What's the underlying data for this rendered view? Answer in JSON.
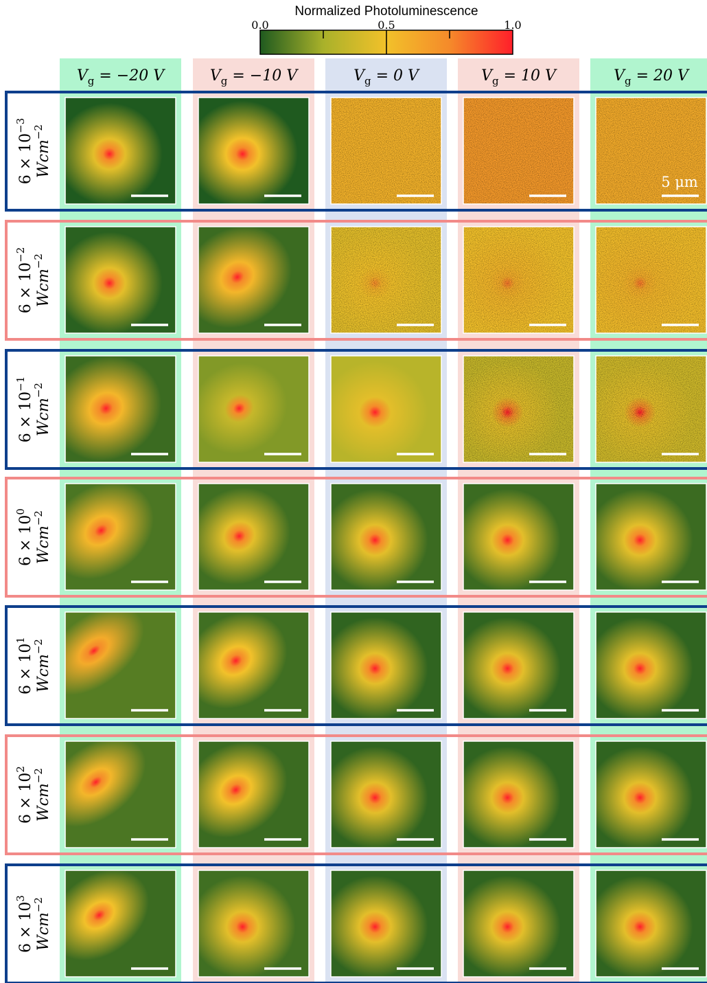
{
  "colorbar": {
    "title": "Normalized Photoluminescence",
    "ticks": [
      "0.0",
      "0.5",
      "1.0"
    ],
    "range": [
      0.0,
      1.0
    ],
    "colors": [
      "#1f5a1f",
      "#bdbd2a",
      "#f2c12a",
      "#f58a2a",
      "#ff1f2a"
    ]
  },
  "columns": [
    {
      "label": "V",
      "sub": "g",
      "value": " = −20 V",
      "tint": "#b1f5cf"
    },
    {
      "label": "V",
      "sub": "g",
      "value": " = −10 V",
      "tint": "#f9dcd8"
    },
    {
      "label": "V",
      "sub": "g",
      "value": " = 0 V",
      "tint": "#dae2f2"
    },
    {
      "label": "V",
      "sub": "g",
      "value": " = 10 V",
      "tint": "#f9dcd8"
    },
    {
      "label": "V",
      "sub": "g",
      "value": " = 20 V",
      "tint": "#b1f5cf"
    }
  ],
  "rows": [
    {
      "mantissa": "6 × 10",
      "exponent": "−3",
      "unit": "Wcm",
      "unit_exp": "−2",
      "frame": "#0e3f8c"
    },
    {
      "mantissa": "6 × 10",
      "exponent": "−2",
      "unit": "Wcm",
      "unit_exp": "−2",
      "frame": "#f28a88"
    },
    {
      "mantissa": "6 × 10",
      "exponent": "−1",
      "unit": "Wcm",
      "unit_exp": "−2",
      "frame": "#0e3f8c"
    },
    {
      "mantissa": "6 × 10",
      "exponent": "0",
      "unit": "Wcm",
      "unit_exp": "−2",
      "frame": "#f28a88"
    },
    {
      "mantissa": "6 × 10",
      "exponent": "1",
      "unit": "Wcm",
      "unit_exp": "−2",
      "frame": "#0e3f8c"
    },
    {
      "mantissa": "6 × 10",
      "exponent": "2",
      "unit": "Wcm",
      "unit_exp": "−2",
      "frame": "#f28a88"
    },
    {
      "mantissa": "6 × 10",
      "exponent": "3",
      "unit": "Wcm",
      "unit_exp": "−2",
      "frame": "#0e3f8c"
    }
  ],
  "scale_bar": {
    "label": "5 μm"
  },
  "panels": [
    [
      {
        "bg": 0.0,
        "spot": 1.0,
        "halo": 0.45,
        "noise": 0.05,
        "elong": 0
      },
      {
        "bg": 0.0,
        "spot": 1.0,
        "halo": 0.5,
        "noise": 0.05,
        "elong": 0
      },
      {
        "bg": 0.57,
        "spot": 0.57,
        "halo": 0,
        "noise": 0.12,
        "elong": 0
      },
      {
        "bg": 0.68,
        "spot": 0.68,
        "halo": 0,
        "noise": 0.12,
        "elong": 0
      },
      {
        "bg": 0.6,
        "spot": 0.6,
        "halo": 0,
        "noise": 0.12,
        "elong": 0
      }
    ],
    [
      {
        "bg": 0.02,
        "spot": 1.0,
        "halo": 0.45,
        "noise": 0.05,
        "elong": 0
      },
      {
        "bg": 0.05,
        "spot": 1.0,
        "halo": 0.55,
        "noise": 0.05,
        "elong": 0.3
      },
      {
        "bg": 0.45,
        "spot": 0.75,
        "halo": 0.5,
        "noise": 0.12,
        "elong": 0
      },
      {
        "bg": 0.5,
        "spot": 0.8,
        "halo": 0.55,
        "noise": 0.12,
        "elong": 0
      },
      {
        "bg": 0.52,
        "spot": 0.8,
        "halo": 0.55,
        "noise": 0.12,
        "elong": 0
      }
    ],
    [
      {
        "bg": 0.05,
        "spot": 1.0,
        "halo": 0.55,
        "noise": 0.05,
        "elong": 0.2
      },
      {
        "bg": 0.18,
        "spot": 1.0,
        "halo": 0.35,
        "noise": 0.06,
        "elong": 0.2
      },
      {
        "bg": 0.3,
        "spot": 1.0,
        "halo": 0.45,
        "noise": 0.08,
        "elong": 0
      },
      {
        "bg": 0.35,
        "spot": 1.0,
        "halo": 0.45,
        "noise": 0.09,
        "elong": 0
      },
      {
        "bg": 0.38,
        "spot": 1.0,
        "halo": 0.45,
        "noise": 0.09,
        "elong": 0
      }
    ],
    [
      {
        "bg": 0.08,
        "spot": 1.0,
        "halo": 0.55,
        "noise": 0.06,
        "elong": 0.5
      },
      {
        "bg": 0.06,
        "spot": 1.0,
        "halo": 0.45,
        "noise": 0.05,
        "elong": 0.2
      },
      {
        "bg": 0.05,
        "spot": 1.0,
        "halo": 0.45,
        "noise": 0.05,
        "elong": 0
      },
      {
        "bg": 0.05,
        "spot": 1.0,
        "halo": 0.45,
        "noise": 0.05,
        "elong": 0
      },
      {
        "bg": 0.05,
        "spot": 1.0,
        "halo": 0.45,
        "noise": 0.05,
        "elong": 0
      }
    ],
    [
      {
        "bg": 0.1,
        "spot": 1.0,
        "halo": 0.6,
        "noise": 0.05,
        "elong": 0.9
      },
      {
        "bg": 0.06,
        "spot": 1.0,
        "halo": 0.5,
        "noise": 0.05,
        "elong": 0.4
      },
      {
        "bg": 0.03,
        "spot": 1.0,
        "halo": 0.45,
        "noise": 0.04,
        "elong": 0
      },
      {
        "bg": 0.03,
        "spot": 1.0,
        "halo": 0.45,
        "noise": 0.04,
        "elong": 0
      },
      {
        "bg": 0.03,
        "spot": 1.0,
        "halo": 0.45,
        "noise": 0.04,
        "elong": 0
      }
    ],
    [
      {
        "bg": 0.08,
        "spot": 1.0,
        "halo": 0.55,
        "noise": 0.05,
        "elong": 0.8
      },
      {
        "bg": 0.05,
        "spot": 1.0,
        "halo": 0.5,
        "noise": 0.05,
        "elong": 0.4
      },
      {
        "bg": 0.03,
        "spot": 1.0,
        "halo": 0.45,
        "noise": 0.04,
        "elong": 0
      },
      {
        "bg": 0.03,
        "spot": 1.0,
        "halo": 0.45,
        "noise": 0.04,
        "elong": 0
      },
      {
        "bg": 0.03,
        "spot": 1.0,
        "halo": 0.45,
        "noise": 0.04,
        "elong": 0
      }
    ],
    [
      {
        "bg": 0.05,
        "spot": 1.0,
        "halo": 0.5,
        "noise": 0.05,
        "elong": 0.6
      },
      {
        "bg": 0.06,
        "spot": 1.0,
        "halo": 0.45,
        "noise": 0.05,
        "elong": 0
      },
      {
        "bg": 0.03,
        "spot": 1.0,
        "halo": 0.45,
        "noise": 0.04,
        "elong": 0
      },
      {
        "bg": 0.03,
        "spot": 1.0,
        "halo": 0.45,
        "noise": 0.04,
        "elong": 0
      },
      {
        "bg": 0.03,
        "spot": 1.0,
        "halo": 0.45,
        "noise": 0.04,
        "elong": 0
      }
    ]
  ]
}
